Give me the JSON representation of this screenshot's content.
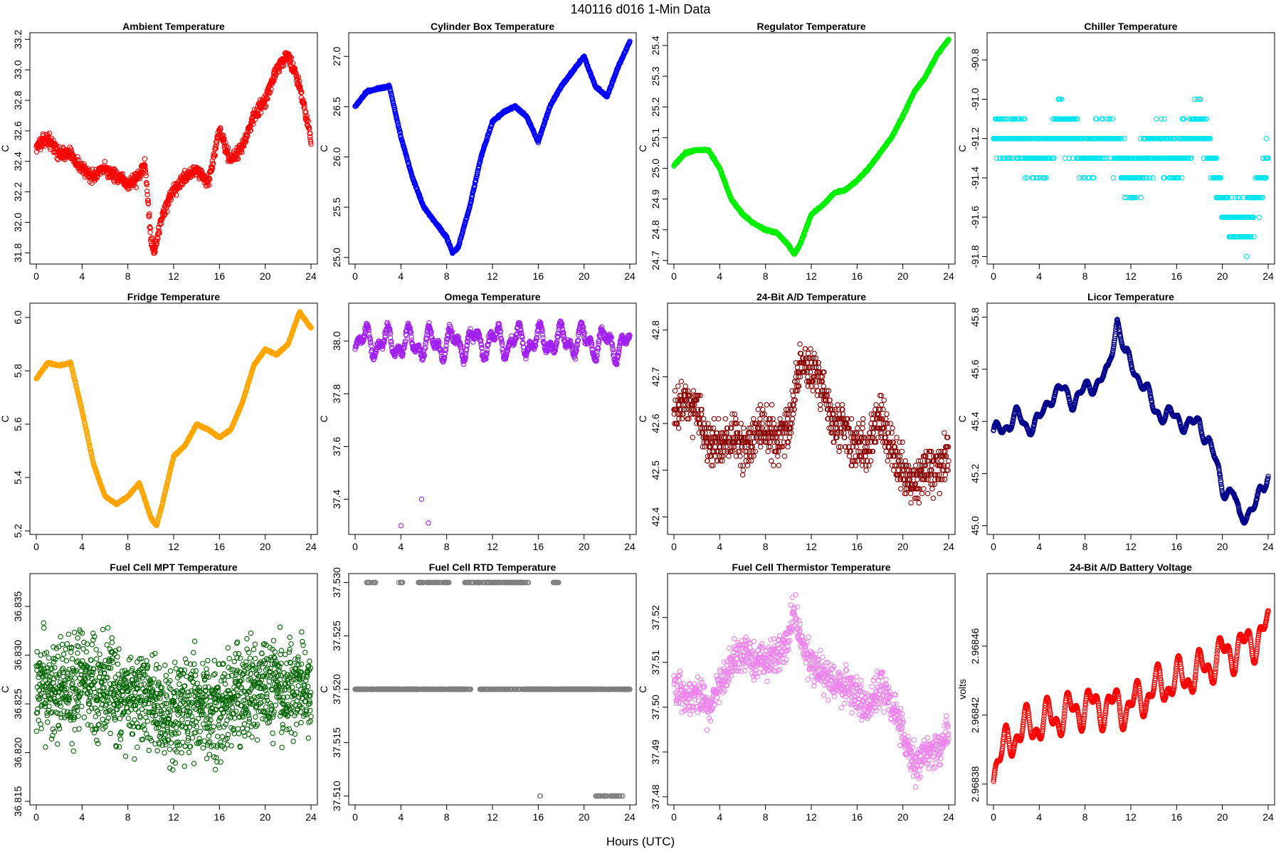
{
  "figure": {
    "title": "140116   d016   1-Min Data",
    "xlabel": "Hours (UTC)"
  },
  "chart_data": [
    {
      "type": "scatter",
      "title": "Ambient Temperature",
      "ylabel": "C",
      "color": "#ff0000",
      "xlim": [
        0,
        24
      ],
      "ylim": [
        31.75,
        33.22
      ],
      "xticks": [
        "0",
        "4",
        "8",
        "12",
        "16",
        "20",
        "24"
      ],
      "xtickvals": [
        0,
        4,
        8,
        12,
        16,
        20,
        24
      ],
      "yticks": [
        "31.8",
        "32.0",
        "32.2",
        "32.4",
        "32.6",
        "32.8",
        "33.0",
        "33.2"
      ],
      "ytickvals": [
        31.8,
        32.0,
        32.2,
        32.4,
        32.6,
        32.8,
        33.0,
        33.2
      ],
      "noise": 0.06,
      "x": [
        0,
        1,
        2,
        3,
        4,
        5,
        6,
        7,
        8,
        9,
        9.5,
        10,
        10.3,
        11,
        12,
        13,
        14,
        15,
        16,
        17,
        18,
        19,
        20,
        21,
        22,
        23,
        24
      ],
      "y": [
        32.5,
        32.55,
        32.45,
        32.45,
        32.35,
        32.3,
        32.35,
        32.3,
        32.25,
        32.3,
        32.4,
        31.9,
        31.8,
        32.05,
        32.2,
        32.3,
        32.35,
        32.25,
        32.6,
        32.4,
        32.5,
        32.7,
        32.8,
        33.0,
        33.1,
        32.9,
        32.55
      ]
    },
    {
      "type": "scatter",
      "title": "Cylinder Box Temperature",
      "ylabel": "C",
      "color": "#0000ff",
      "xlim": [
        0,
        24
      ],
      "ylim": [
        24.97,
        27.2
      ],
      "xticks": [
        "0",
        "4",
        "8",
        "12",
        "16",
        "20",
        "24"
      ],
      "xtickvals": [
        0,
        4,
        8,
        12,
        16,
        20,
        24
      ],
      "yticks": [
        "25.0",
        "25.5",
        "26.0",
        "26.5",
        "27.0"
      ],
      "ytickvals": [
        25.0,
        25.5,
        26.0,
        26.5,
        27.0
      ],
      "noise": 0.015,
      "x": [
        0,
        1,
        2,
        3,
        4,
        5,
        6,
        7,
        8,
        8.5,
        9,
        10,
        11,
        12,
        13,
        14,
        15,
        16,
        17,
        18,
        19,
        20,
        21,
        22,
        23,
        24
      ],
      "y": [
        26.5,
        26.65,
        26.68,
        26.7,
        26.2,
        25.8,
        25.5,
        25.35,
        25.2,
        25.05,
        25.1,
        25.5,
        26.0,
        26.35,
        26.45,
        26.5,
        26.4,
        26.15,
        26.5,
        26.7,
        26.85,
        27.0,
        26.7,
        26.6,
        26.9,
        27.15
      ]
    },
    {
      "type": "scatter",
      "title": "Regulator Temperature",
      "ylabel": "C",
      "color": "#00ee00",
      "xlim": [
        0,
        24
      ],
      "ylim": [
        24.7,
        25.43
      ],
      "xticks": [
        "0",
        "4",
        "8",
        "12",
        "16",
        "20",
        "24"
      ],
      "xtickvals": [
        0,
        4,
        8,
        12,
        16,
        20,
        24
      ],
      "yticks": [
        "24.7",
        "24.8",
        "24.9",
        "25.0",
        "25.1",
        "25.2",
        "25.3",
        "25.4"
      ],
      "ytickvals": [
        24.7,
        24.8,
        24.9,
        25.0,
        25.1,
        25.2,
        25.3,
        25.4
      ],
      "noise": 0.004,
      "x": [
        0,
        1,
        2,
        3,
        4,
        5,
        6,
        7,
        8,
        9,
        10,
        10.5,
        11,
        12,
        13,
        14,
        15,
        16,
        17,
        18,
        19,
        20,
        21,
        22,
        23,
        24
      ],
      "y": [
        25.01,
        25.05,
        25.06,
        25.06,
        25.0,
        24.9,
        24.85,
        24.82,
        24.8,
        24.79,
        24.75,
        24.72,
        24.75,
        24.85,
        24.88,
        24.92,
        24.93,
        24.96,
        25.0,
        25.05,
        25.1,
        25.17,
        25.25,
        25.3,
        25.37,
        25.42
      ]
    },
    {
      "type": "scatter",
      "title": "Chiller Temperature",
      "ylabel": "C",
      "color": "#00e5ee",
      "xlim": [
        0,
        24
      ],
      "ylim": [
        -91.82,
        -90.68
      ],
      "xticks": [
        "0",
        "4",
        "8",
        "12",
        "16",
        "20",
        "24"
      ],
      "xtickvals": [
        0,
        4,
        8,
        12,
        16,
        20,
        24
      ],
      "yticks": [
        "-91.8",
        "-91.6",
        "-91.4",
        "-91.2",
        "-91.0",
        "-90.8"
      ],
      "ytickvals": [
        -91.8,
        -91.6,
        -91.4,
        -91.2,
        -91.0,
        -90.8
      ],
      "quantize": 0.1,
      "noise": 0.18,
      "x": [
        0,
        2,
        4,
        6,
        8,
        10,
        12,
        14,
        16,
        18,
        19,
        20,
        21,
        22,
        23,
        24
      ],
      "y": [
        -91.2,
        -91.2,
        -91.3,
        -91.1,
        -91.3,
        -91.2,
        -91.4,
        -91.25,
        -91.3,
        -91.1,
        -91.3,
        -91.55,
        -91.65,
        -91.65,
        -91.5,
        -91.3
      ]
    },
    {
      "type": "scatter",
      "title": "Fridge Temperature",
      "ylabel": "C",
      "color": "#ffa500",
      "xlim": [
        0,
        24
      ],
      "ylim": [
        5.2,
        6.04
      ],
      "xticks": [
        "0",
        "4",
        "8",
        "12",
        "16",
        "20",
        "24"
      ],
      "xtickvals": [
        0,
        4,
        8,
        12,
        16,
        20,
        24
      ],
      "yticks": [
        "5.2",
        "5.4",
        "5.6",
        "5.8",
        "6.0"
      ],
      "ytickvals": [
        5.2,
        5.4,
        5.6,
        5.8,
        6.0
      ],
      "noise": 0.004,
      "x": [
        0,
        1,
        2,
        3,
        4,
        5,
        6,
        7,
        8,
        9,
        10,
        10.5,
        11,
        12,
        13,
        14,
        15,
        16,
        17,
        18,
        19,
        20,
        21,
        22,
        23,
        24
      ],
      "y": [
        5.77,
        5.83,
        5.82,
        5.83,
        5.65,
        5.45,
        5.33,
        5.3,
        5.33,
        5.38,
        5.25,
        5.22,
        5.3,
        5.48,
        5.52,
        5.6,
        5.58,
        5.55,
        5.58,
        5.68,
        5.82,
        5.88,
        5.86,
        5.9,
        6.02,
        5.96
      ]
    },
    {
      "type": "scatter",
      "title": "Omega Temperature",
      "ylabel": "C",
      "color": "#a020f0",
      "xlim": [
        0,
        24
      ],
      "ylim": [
        37.28,
        38.13
      ],
      "xticks": [
        "0",
        "4",
        "8",
        "12",
        "16",
        "20",
        "24"
      ],
      "xtickvals": [
        0,
        4,
        8,
        12,
        16,
        20,
        24
      ],
      "yticks": [
        "37.4",
        "37.6",
        "37.8",
        "38.0"
      ],
      "ytickvals": [
        37.4,
        37.6,
        37.8,
        38.0
      ],
      "noise": 0.02,
      "wave": 0.07,
      "x": [
        0,
        4,
        8,
        12,
        16,
        20,
        24
      ],
      "y": [
        38.0,
        37.99,
        37.99,
        38.0,
        38.0,
        38.0,
        37.98
      ],
      "outliers": [
        [
          4,
          37.3
        ],
        [
          5.8,
          37.4
        ],
        [
          6.4,
          37.31
        ]
      ]
    },
    {
      "type": "scatter",
      "title": "24-Bit A/D Temperature",
      "ylabel": "C",
      "color": "#8b0000",
      "xlim": [
        0,
        24
      ],
      "ylim": [
        42.37,
        42.85
      ],
      "xticks": [
        "0",
        "4",
        "8",
        "12",
        "16",
        "20",
        "24"
      ],
      "xtickvals": [
        0,
        4,
        8,
        12,
        16,
        20,
        24
      ],
      "yticks": [
        "42.4",
        "42.5",
        "42.6",
        "42.7",
        "42.8"
      ],
      "ytickvals": [
        42.4,
        42.5,
        42.6,
        42.7,
        42.8
      ],
      "quantize": 0.01,
      "noise": 0.07,
      "x": [
        0,
        1,
        2,
        3,
        4,
        5,
        6,
        7,
        8,
        9,
        10,
        11,
        12,
        13,
        14,
        15,
        16,
        17,
        18,
        19,
        20,
        21,
        22,
        23,
        24
      ],
      "y": [
        42.62,
        42.65,
        42.63,
        42.55,
        42.55,
        42.58,
        42.55,
        42.57,
        42.6,
        42.55,
        42.6,
        42.72,
        42.72,
        42.68,
        42.6,
        42.58,
        42.55,
        42.55,
        42.62,
        42.55,
        42.5,
        42.47,
        42.5,
        42.5,
        42.53
      ]
    },
    {
      "type": "scatter",
      "title": "Licor Temperature",
      "ylabel": "C",
      "color": "#00008b",
      "xlim": [
        0,
        24
      ],
      "ylim": [
        44.98,
        45.84
      ],
      "xticks": [
        "0",
        "4",
        "8",
        "12",
        "16",
        "20",
        "24"
      ],
      "xtickvals": [
        0,
        4,
        8,
        12,
        16,
        20,
        24
      ],
      "yticks": [
        "45.0",
        "45.2",
        "45.4",
        "45.6",
        "45.8"
      ],
      "ytickvals": [
        45.0,
        45.2,
        45.4,
        45.6,
        45.8
      ],
      "noise": 0.004,
      "wave": 0.04,
      "x": [
        0,
        1,
        2,
        3,
        4,
        5,
        6,
        7,
        8,
        9,
        10,
        10.8,
        11.5,
        12,
        13,
        14,
        15,
        16,
        17,
        18,
        19,
        20,
        21,
        21.5,
        22,
        23,
        24
      ],
      "y": [
        45.35,
        45.38,
        45.42,
        45.38,
        45.4,
        45.5,
        45.52,
        45.48,
        45.52,
        45.55,
        45.58,
        45.8,
        45.65,
        45.62,
        45.55,
        45.45,
        45.42,
        45.42,
        45.38,
        45.4,
        45.3,
        45.15,
        45.12,
        45.02,
        45.05,
        45.08,
        45.2
      ]
    },
    {
      "type": "scatter",
      "title": "Fuel Cell MPT Temperature",
      "ylabel": "C",
      "color": "#006400",
      "xlim": [
        0,
        24
      ],
      "ylim": [
        36.815,
        36.838
      ],
      "xticks": [
        "0",
        "4",
        "8",
        "12",
        "16",
        "20",
        "24"
      ],
      "xtickvals": [
        0,
        4,
        8,
        12,
        16,
        20,
        24
      ],
      "yticks": [
        "36.815",
        "36.820",
        "36.825",
        "36.830",
        "36.835"
      ],
      "ytickvals": [
        36.815,
        36.82,
        36.825,
        36.83,
        36.835
      ],
      "noise": 0.006,
      "dense": true,
      "x": [
        0,
        4,
        8,
        12,
        16,
        20,
        24
      ],
      "y": [
        36.827,
        36.827,
        36.826,
        36.824,
        36.825,
        36.827,
        36.826
      ]
    },
    {
      "type": "scatter",
      "title": "Fuel Cell RTD Temperature",
      "ylabel": "C",
      "color": "#7f7f7f",
      "xlim": [
        0,
        24
      ],
      "ylim": [
        37.5095,
        37.5305
      ],
      "xticks": [
        "0",
        "4",
        "8",
        "12",
        "16",
        "20",
        "24"
      ],
      "xtickvals": [
        0,
        4,
        8,
        12,
        16,
        20,
        24
      ],
      "yticks": [
        "37.510",
        "37.515",
        "37.520",
        "37.525",
        "37.530"
      ],
      "ytickvals": [
        37.51,
        37.515,
        37.52,
        37.525,
        37.53
      ],
      "levels": [
        37.51,
        37.52,
        37.53
      ],
      "x": [
        0,
        24
      ],
      "y": [
        37.52,
        37.52
      ]
    },
    {
      "type": "scatter",
      "title": "Fuel Cell Thermistor Temperature",
      "ylabel": "C",
      "color": "#ee82ee",
      "xlim": [
        0,
        24
      ],
      "ylim": [
        37.479,
        37.529
      ],
      "xticks": [
        "0",
        "4",
        "8",
        "12",
        "16",
        "20",
        "24"
      ],
      "xtickvals": [
        0,
        4,
        8,
        12,
        16,
        20,
        24
      ],
      "yticks": [
        "37.48",
        "37.49",
        "37.50",
        "37.51",
        "37.52"
      ],
      "ytickvals": [
        37.48,
        37.49,
        37.5,
        37.51,
        37.52
      ],
      "noise": 0.006,
      "x": [
        0,
        1,
        2,
        3,
        4,
        5,
        6,
        7,
        8,
        9,
        10,
        10.5,
        11,
        12,
        13,
        14,
        15,
        16,
        17,
        18,
        19,
        20,
        21,
        22,
        23,
        24
      ],
      "y": [
        37.505,
        37.502,
        37.503,
        37.5,
        37.505,
        37.51,
        37.512,
        37.51,
        37.51,
        37.512,
        37.515,
        37.522,
        37.515,
        37.51,
        37.508,
        37.505,
        37.505,
        37.502,
        37.5,
        37.505,
        37.5,
        37.495,
        37.487,
        37.49,
        37.49,
        37.495
      ]
    },
    {
      "type": "scatter",
      "title": "24-Bit A/D Battery Voltage",
      "ylabel": "volts",
      "color": "#ff0000",
      "xlim": [
        0,
        24
      ],
      "ylim": [
        2.96837,
        2.9685
      ],
      "xticks": [
        "0",
        "4",
        "8",
        "12",
        "16",
        "20",
        "24"
      ],
      "xtickvals": [
        0,
        4,
        8,
        12,
        16,
        20,
        24
      ],
      "yticks": [
        "2.96838",
        "2.96842",
        "2.96846"
      ],
      "ytickvals": [
        2.96838,
        2.96842,
        2.96846
      ],
      "noise": 3e-07,
      "wave": 1.4e-05,
      "x": [
        0,
        2,
        4,
        6,
        8,
        10,
        12,
        14,
        16,
        18,
        20,
        22,
        24
      ],
      "y": [
        2.96839,
        2.96841,
        2.968415,
        2.96842,
        2.968425,
        2.968425,
        2.968425,
        2.968435,
        2.96844,
        2.968445,
        2.968455,
        2.96846,
        2.96847
      ]
    }
  ]
}
